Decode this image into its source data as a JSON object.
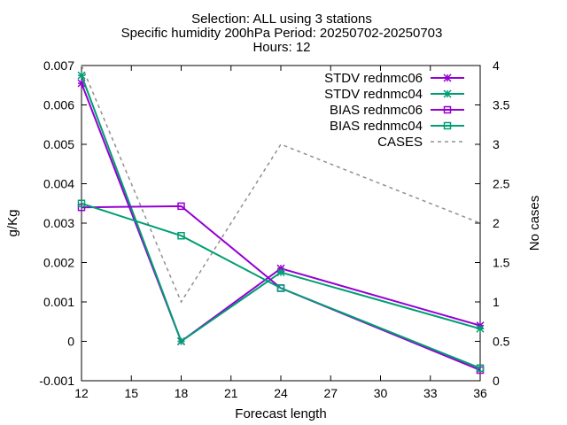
{
  "chart_data": {
    "type": "line",
    "title_lines": [
      "Selection: ALL using     3 stations",
      "Specific humidity 200hPa   Period: 20250702-20250703",
      "Hours: 12"
    ],
    "xlabel": "Forecast length",
    "ylabel": "g/Kg",
    "y2label": "No cases",
    "xlim": [
      12,
      36
    ],
    "ylim": [
      -0.001,
      0.007
    ],
    "y2lim": [
      0,
      4
    ],
    "xticks": [
      "12",
      "15",
      "18",
      "21",
      "24",
      "27",
      "30",
      "33",
      "36"
    ],
    "yticks": [
      "-0.001",
      "0",
      "0.001",
      "0.002",
      "0.003",
      "0.004",
      "0.005",
      "0.006",
      "0.007"
    ],
    "y2ticks": [
      "0",
      "0.5",
      "1",
      "1.5",
      "2",
      "2.5",
      "3",
      "3.5",
      "4"
    ],
    "grid": false,
    "legend_position": "top-right",
    "series": [
      {
        "name": "STDV rednmc06",
        "color": "#9400d3",
        "marker": "star",
        "dash": false,
        "axis": "y1",
        "x": [
          12,
          18,
          24,
          36
        ],
        "values": [
          0.00655,
          0.0,
          0.00185,
          0.0004
        ]
      },
      {
        "name": "STDV rednmc04",
        "color": "#009e73",
        "marker": "star",
        "dash": false,
        "axis": "y1",
        "x": [
          12,
          18,
          24,
          36
        ],
        "values": [
          0.00675,
          0.0,
          0.00175,
          0.00032
        ]
      },
      {
        "name": "BIAS rednmc06",
        "color": "#9400d3",
        "marker": "square",
        "dash": false,
        "axis": "y1",
        "x": [
          12,
          18,
          24,
          36
        ],
        "values": [
          0.0034,
          0.00343,
          0.00135,
          -0.00073
        ]
      },
      {
        "name": "BIAS rednmc04",
        "color": "#009e73",
        "marker": "square",
        "dash": false,
        "axis": "y1",
        "x": [
          12,
          18,
          24,
          36
        ],
        "values": [
          0.0035,
          0.00268,
          0.00135,
          -0.00068
        ]
      },
      {
        "name": "CASES",
        "color": "#909090",
        "marker": "none",
        "dash": true,
        "axis": "y2",
        "x": [
          12,
          18,
          24,
          36
        ],
        "values": [
          4,
          1,
          3,
          2
        ]
      }
    ]
  }
}
